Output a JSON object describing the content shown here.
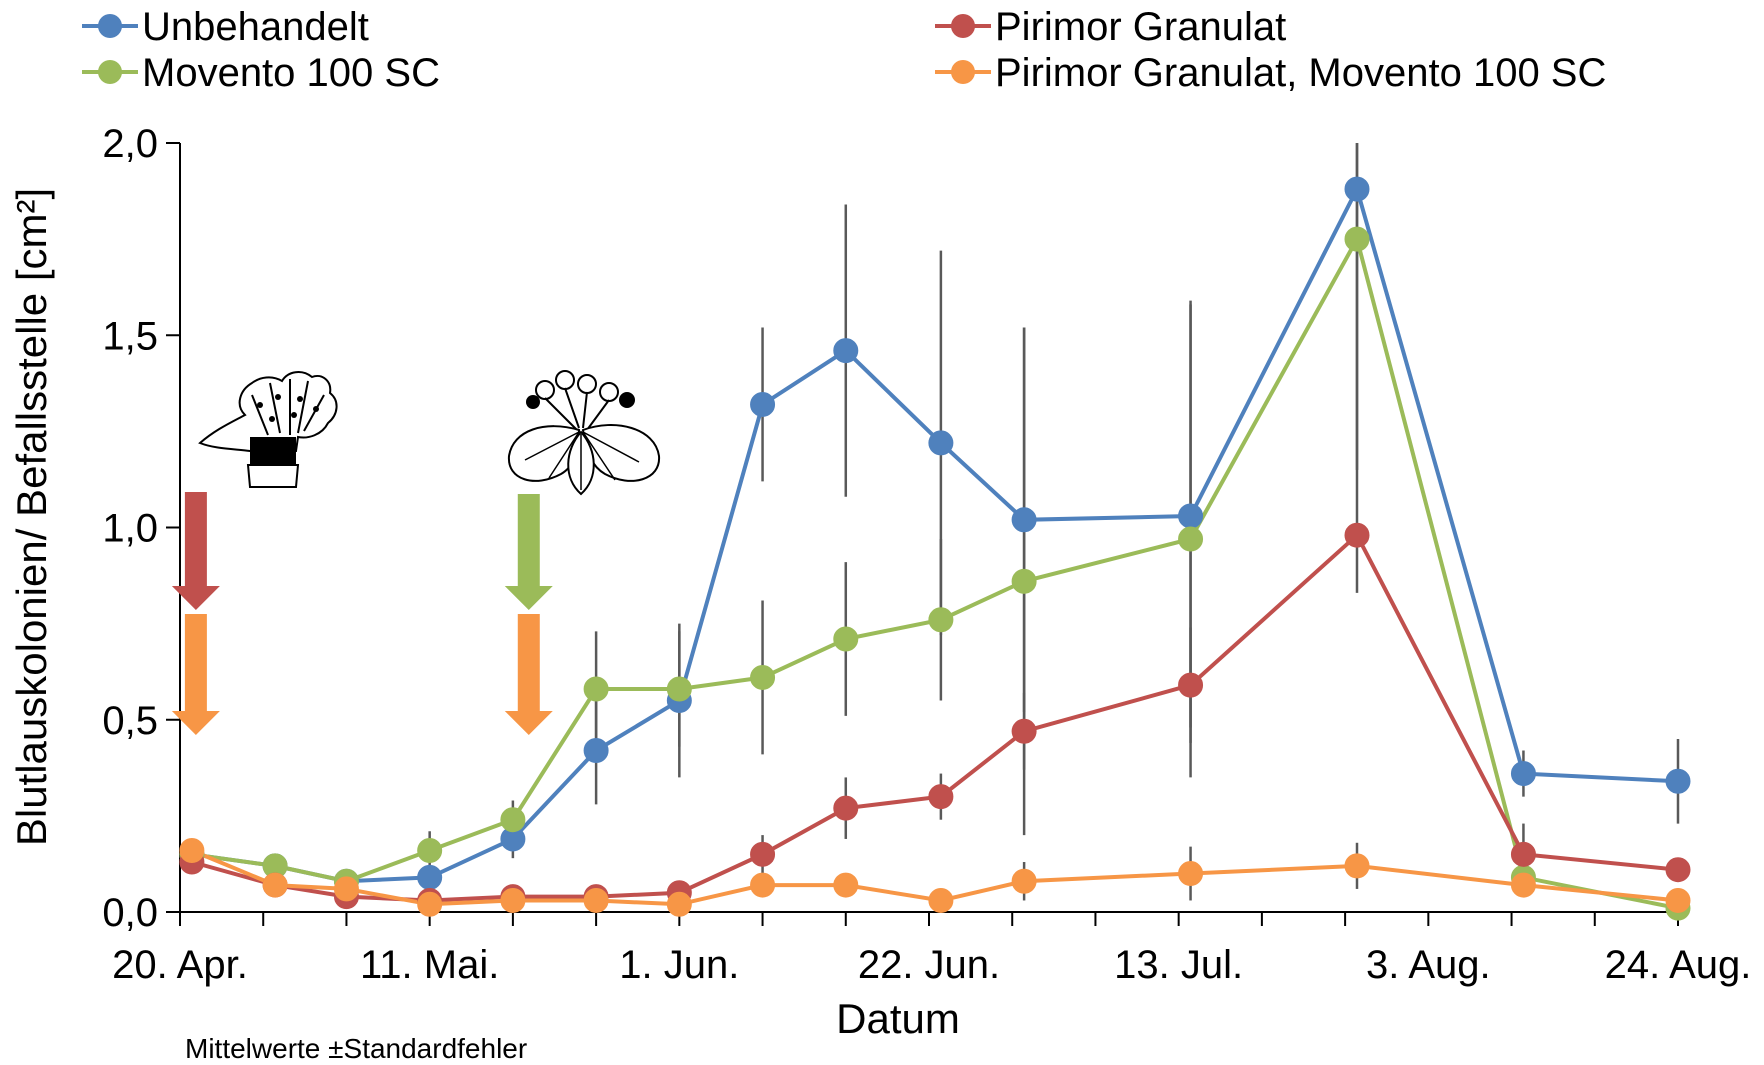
{
  "chart_data": {
    "type": "line",
    "title": "",
    "xlabel": "Datum",
    "ylabel": "Blutlauskolonien/ Befallsstelle [cm²]",
    "note": "Mittelwerte ±Standardfehler",
    "ylim": [
      0,
      2
    ],
    "yticks": [
      "0,0",
      "0,5",
      "1,0",
      "1,5",
      "2,0"
    ],
    "ytick_values": [
      0,
      0.5,
      1.0,
      1.5,
      2.0
    ],
    "xlim": [
      "2014-04-20",
      "2014-08-24"
    ],
    "xticks": [
      "20. Apr.",
      "11. Mai.",
      "1. Jun.",
      "22. Jun.",
      "13. Jul.",
      "3. Aug.",
      "24. Aug."
    ],
    "xtick_dates": [
      "2014-04-20",
      "2014-05-11",
      "2014-06-01",
      "2014-06-22",
      "2014-07-13",
      "2014-08-03",
      "2014-08-24"
    ],
    "grid": false,
    "legend_position": "top",
    "dates": [
      "2014-04-21",
      "2014-04-28",
      "2014-05-05",
      "2014-05-12",
      "2014-05-19",
      "2014-05-26",
      "2014-06-02",
      "2014-06-09",
      "2014-06-16",
      "2014-06-23",
      "2014-06-30",
      "2014-07-07",
      "2014-07-14",
      "2014-07-21",
      "2014-07-28",
      "2014-08-04",
      "2014-08-11",
      "2014-08-18",
      "2014-08-24"
    ],
    "series": [
      {
        "name": "Unbehandelt",
        "color": "#4f81bd",
        "x": [
          "2014-04-21",
          "2014-04-28",
          "2014-05-04",
          "2014-05-11",
          "2014-05-18",
          "2014-05-25",
          "2014-06-01",
          "2014-06-08",
          "2014-06-15",
          "2014-06-23",
          "2014-06-30",
          "2014-07-14",
          "2014-07-28",
          "2014-08-11",
          "2014-08-24"
        ],
        "values": [
          0.15,
          0.12,
          0.08,
          0.09,
          0.19,
          0.42,
          0.55,
          1.32,
          1.46,
          1.22,
          1.02,
          1.03,
          1.88,
          0.36,
          0.34
        ],
        "error": [
          0.02,
          0.02,
          0.02,
          0.02,
          0.05,
          0.14,
          0.2,
          0.2,
          0.38,
          0.5,
          0.5,
          0.55,
          0.75,
          0.06,
          0.11
        ]
      },
      {
        "name": "Pirimor Granulat",
        "color": "#c0504d",
        "x": [
          "2014-04-21",
          "2014-04-28",
          "2014-05-04",
          "2014-05-11",
          "2014-05-18",
          "2014-05-25",
          "2014-06-01",
          "2014-06-08",
          "2014-06-15",
          "2014-06-23",
          "2014-06-30",
          "2014-07-14",
          "2014-07-28",
          "2014-08-11",
          "2014-08-24"
        ],
        "values": [
          0.13,
          0.07,
          0.04,
          0.03,
          0.04,
          0.04,
          0.05,
          0.15,
          0.27,
          0.3,
          0.47,
          0.59,
          0.98,
          0.15,
          0.11
        ],
        "error": [
          0.02,
          0.01,
          0.01,
          0.01,
          0.01,
          0.01,
          0.01,
          0.05,
          0.08,
          0.06,
          0.1,
          0.15,
          0.15,
          0.08,
          0.03
        ]
      },
      {
        "name": "Movento 100 SC",
        "color": "#9bbb59",
        "x": [
          "2014-04-21",
          "2014-04-28",
          "2014-05-04",
          "2014-05-11",
          "2014-05-18",
          "2014-05-25",
          "2014-06-01",
          "2014-06-08",
          "2014-06-15",
          "2014-06-23",
          "2014-06-30",
          "2014-07-14",
          "2014-07-28",
          "2014-08-11",
          "2014-08-24"
        ],
        "values": [
          0.15,
          0.12,
          0.08,
          0.16,
          0.24,
          0.58,
          0.58,
          0.61,
          0.71,
          0.76,
          0.86,
          0.97,
          1.75,
          0.09,
          0.01
        ],
        "error": [
          0.02,
          0.02,
          0.02,
          0.05,
          0.05,
          0.15,
          0.15,
          0.2,
          0.2,
          0.21,
          0.66,
          0.62,
          0.6,
          0.05,
          0.01
        ]
      },
      {
        "name": "Pirimor Granulat, Movento 100 SC",
        "color": "#f79646",
        "x": [
          "2014-04-21",
          "2014-04-28",
          "2014-05-04",
          "2014-05-11",
          "2014-05-18",
          "2014-05-25",
          "2014-06-01",
          "2014-06-08",
          "2014-06-15",
          "2014-06-23",
          "2014-06-30",
          "2014-07-14",
          "2014-07-28",
          "2014-08-11",
          "2014-08-24"
        ],
        "values": [
          0.16,
          0.07,
          0.06,
          0.02,
          0.03,
          0.03,
          0.02,
          0.07,
          0.07,
          0.03,
          0.08,
          0.1,
          0.12,
          0.07,
          0.03
        ],
        "error": [
          0.01,
          0.01,
          0.01,
          0.01,
          0.01,
          0.01,
          0.01,
          0.02,
          0.02,
          0.01,
          0.05,
          0.07,
          0.06,
          0.03,
          0.02
        ]
      }
    ],
    "annotations": [
      {
        "kind": "arrow",
        "color": "#c0504d",
        "date": "2014-04-21",
        "meaning": "Pirimor Granulat application"
      },
      {
        "kind": "arrow",
        "color": "#f79646",
        "date": "2014-04-21",
        "meaning": "Pirimor Granulat, Movento 100 SC application"
      },
      {
        "kind": "arrow",
        "color": "#9bbb59",
        "date": "2014-05-19",
        "meaning": "Movento 100 SC application"
      },
      {
        "kind": "arrow",
        "color": "#f79646",
        "date": "2014-05-19",
        "meaning": "Pirimor Granulat, Movento 100 SC application"
      },
      {
        "kind": "plant-icon",
        "icon": "bud-icon",
        "date": "2014-04-21"
      },
      {
        "kind": "plant-icon",
        "icon": "flower-cluster-icon",
        "date": "2014-05-19"
      }
    ]
  }
}
